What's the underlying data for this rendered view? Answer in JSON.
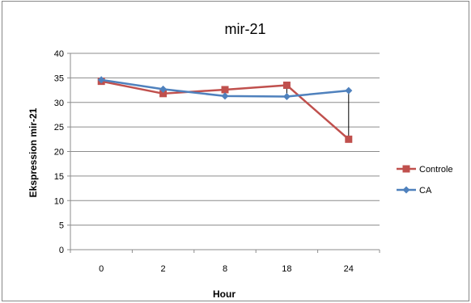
{
  "chart_data": {
    "type": "line",
    "title": "mir-21",
    "xlabel": "Hour",
    "ylabel": "Ekspression mir-21",
    "categories": [
      "0",
      "2",
      "8",
      "18",
      "24"
    ],
    "ylim": [
      0,
      40
    ],
    "yticks": [
      0,
      5,
      10,
      15,
      20,
      25,
      30,
      35,
      40
    ],
    "grid": true,
    "legend_position": "right",
    "series": [
      {
        "name": "Controle",
        "values": [
          34.3,
          31.8,
          32.6,
          33.5,
          22.5
        ],
        "color": "#c0504d",
        "marker": "square"
      },
      {
        "name": "CA",
        "values": [
          34.6,
          32.7,
          31.3,
          31.2,
          32.4
        ],
        "color": "#4f81bd",
        "marker": "diamond"
      }
    ],
    "drop_lines": true
  }
}
